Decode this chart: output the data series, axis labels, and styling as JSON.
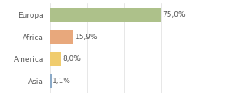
{
  "categories": [
    "Europa",
    "Africa",
    "America",
    "Asia"
  ],
  "values": [
    75.0,
    15.9,
    8.0,
    1.1
  ],
  "labels": [
    "75,0%",
    "15,9%",
    "8,0%",
    "1,1%"
  ],
  "bar_colors": [
    "#adc18a",
    "#e8a87c",
    "#f0cc6e",
    "#8baac8"
  ],
  "background_color": "#ffffff",
  "xlim": [
    0,
    100
  ],
  "bar_height": 0.62,
  "label_fontsize": 6.5,
  "tick_fontsize": 6.5,
  "grid_color": "#dddddd",
  "text_color": "#555555"
}
